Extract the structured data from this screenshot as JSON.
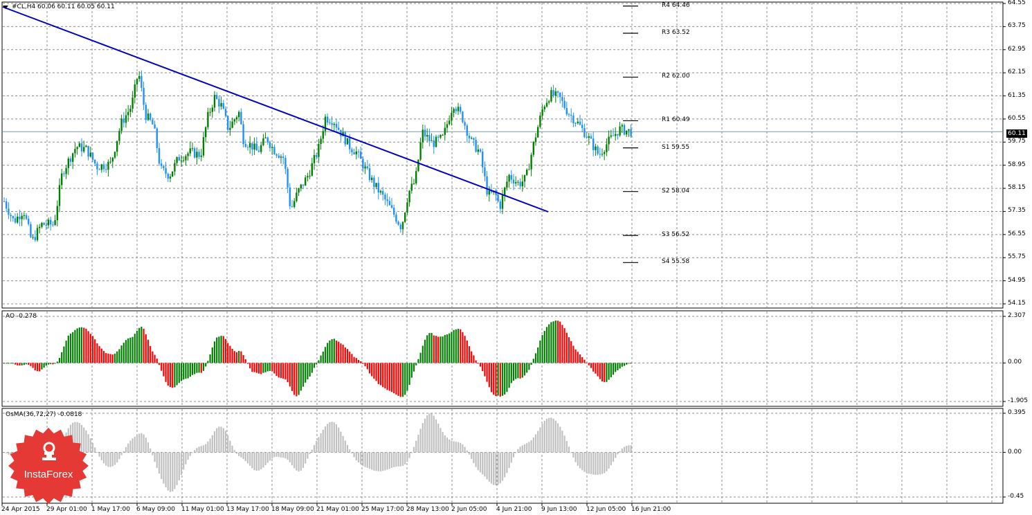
{
  "main_chart": {
    "title": "#CL,H4  60.06 60.11 60.05 60.11",
    "last_price": "60.11",
    "y_ticks": [
      "64.55",
      "63.75",
      "62.95",
      "62.15",
      "61.35",
      "60.55",
      "59.75",
      "58.95",
      "58.15",
      "57.35",
      "56.55",
      "55.75",
      "54.95",
      "54.15"
    ],
    "levels": [
      {
        "label": "R4 64.46",
        "price": 64.46
      },
      {
        "label": "R3 63.52",
        "price": 63.52
      },
      {
        "label": "R2 62.00",
        "price": 62.0
      },
      {
        "label": "R1 60.49",
        "price": 60.49
      },
      {
        "label": "S1 59.55",
        "price": 59.55
      },
      {
        "label": "S2 58.04",
        "price": 58.04
      },
      {
        "label": "S3 56.52",
        "price": 56.52
      },
      {
        "label": "S4 55.58",
        "price": 55.58
      }
    ],
    "colors": {
      "bull": "#008000",
      "bear": "#1e90ff",
      "trendline": "#0000c0",
      "grid": "#888888"
    }
  },
  "ao": {
    "title": "AO -0.278",
    "y_ticks": [
      "2.307",
      "0.00",
      "-1.905"
    ],
    "colors": {
      "up": "#008000",
      "down": "#ff0000"
    }
  },
  "osma": {
    "title": "OsMA(36,72,27) -0.0818",
    "y_ticks": [
      "0.395",
      "0.00",
      "-0.45"
    ],
    "colors": {
      "bar": "#c0c0c0"
    }
  },
  "x_axis": [
    "24 Apr 2015",
    "29 Apr 01:00",
    "1 May 17:00",
    "6 May 09:00",
    "11 May 01:00",
    "13 May 17:00",
    "18 May 09:00",
    "21 May 01:00",
    "25 May 17:00",
    "28 May 13:00",
    "2 Jun 05:00",
    "4 Jun 21:00",
    "9 Jun 13:00",
    "12 Jun 05:00",
    "16 Jun 21:00"
  ],
  "logo": {
    "text": "InstaForex",
    "color": "#e53935"
  }
}
